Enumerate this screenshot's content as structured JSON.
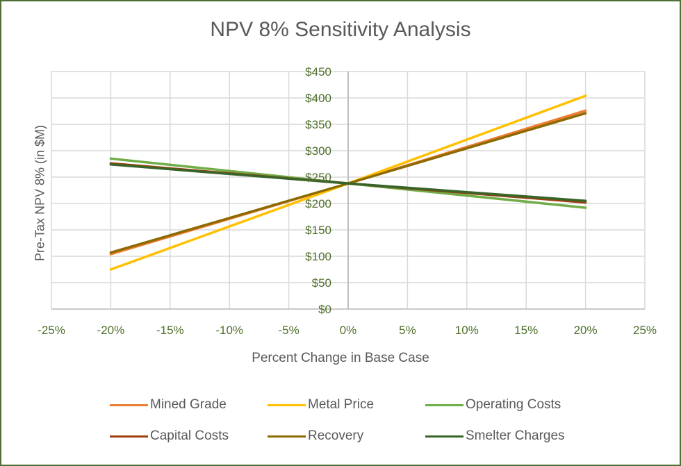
{
  "chart_data": {
    "type": "line",
    "title": "NPV 8% Sensitivity Analysis",
    "xlabel": "Percent Change in Base Case",
    "ylabel": "Pre-Tax NPV 8% (in $M)",
    "x": [
      -20,
      0,
      20
    ],
    "xlim": [
      -25,
      25
    ],
    "ylim": [
      0,
      450
    ],
    "x_ticks": [
      -25,
      -20,
      -15,
      -10,
      -5,
      0,
      5,
      10,
      15,
      20,
      25
    ],
    "x_tick_labels": [
      "-25%",
      "-20%",
      "-15%",
      "-10%",
      "-5%",
      "0%",
      "5%",
      "10%",
      "15%",
      "20%",
      "25%"
    ],
    "y_ticks": [
      0,
      50,
      100,
      150,
      200,
      250,
      300,
      350,
      400,
      450
    ],
    "y_tick_labels": [
      "$0",
      "$50",
      "$100",
      "$150",
      "$200",
      "$250",
      "$300",
      "$350",
      "$400",
      "$450"
    ],
    "grid": true,
    "legend_position": "bottom",
    "series": [
      {
        "name": "Mined Grade",
        "color": "#ed7d31",
        "values": [
          104,
          238,
          376
        ]
      },
      {
        "name": "Metal Price",
        "color": "#ffc000",
        "values": [
          75,
          238,
          404
        ]
      },
      {
        "name": "Operating Costs",
        "color": "#70ad47",
        "values": [
          285,
          238,
          192
        ]
      },
      {
        "name": "Capital Costs",
        "color": "#9e3f0e",
        "values": [
          276,
          238,
          202
        ]
      },
      {
        "name": "Recovery",
        "color": "#8c6a00",
        "values": [
          107,
          238,
          371
        ]
      },
      {
        "name": "Smelter Charges",
        "color": "#38642a",
        "values": [
          274,
          238,
          205
        ]
      }
    ]
  }
}
